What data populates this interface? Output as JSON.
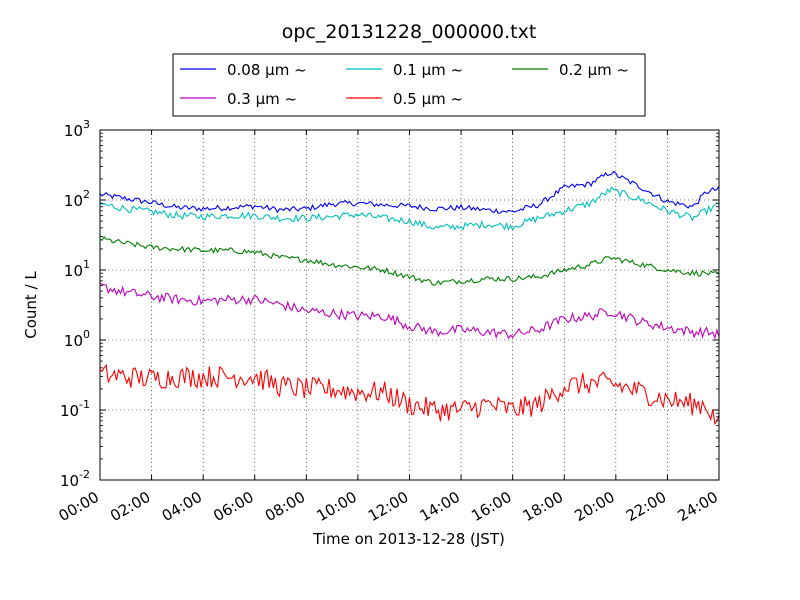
{
  "chart_data": {
    "type": "line",
    "title": "opc_20131228_000000.txt",
    "xlabel": "Time on 2013-12-28 (JST)",
    "ylabel": "Count / L",
    "yscale": "log",
    "ylim": [
      0.01,
      1000
    ],
    "xlim": [
      "00:00",
      "24:00"
    ],
    "xticks": [
      "00:00",
      "02:00",
      "04:00",
      "06:00",
      "08:00",
      "10:00",
      "12:00",
      "14:00",
      "16:00",
      "18:00",
      "20:00",
      "22:00",
      "24:00"
    ],
    "yticks": [
      {
        "value": 0.01,
        "base": "10",
        "exp": "-2"
      },
      {
        "value": 0.1,
        "base": "10",
        "exp": "-1"
      },
      {
        "value": 1,
        "base": "10",
        "exp": "0"
      },
      {
        "value": 10,
        "base": "10",
        "exp": "1"
      },
      {
        "value": 100,
        "base": "10",
        "exp": "2"
      },
      {
        "value": 1000,
        "base": "10",
        "exp": "3"
      }
    ],
    "grid": true,
    "legend_position": "top-center, above plot",
    "x_hours": [
      0,
      1,
      2,
      3,
      4,
      5,
      6,
      7,
      8,
      9,
      10,
      11,
      12,
      13,
      14,
      15,
      16,
      17,
      18,
      19,
      19.8,
      21,
      22,
      23,
      23.5,
      24
    ],
    "series": [
      {
        "name": "0.08 μm ~",
        "color": "#0000ff",
        "noise": 0.04,
        "values": [
          120,
          105,
          92,
          78,
          75,
          78,
          82,
          72,
          75,
          88,
          90,
          85,
          82,
          75,
          78,
          72,
          68,
          85,
          150,
          170,
          250,
          150,
          95,
          80,
          130,
          145
        ]
      },
      {
        "name": "0.1 μm ~",
        "color": "#00bfbf",
        "noise": 0.05,
        "values": [
          88,
          75,
          68,
          60,
          58,
          60,
          60,
          55,
          55,
          58,
          62,
          55,
          50,
          40,
          42,
          45,
          42,
          55,
          70,
          90,
          140,
          100,
          70,
          55,
          70,
          85
        ]
      },
      {
        "name": "0.2 μm ~",
        "color": "#008000",
        "noise": 0.04,
        "values": [
          28,
          24,
          21,
          20,
          19,
          19,
          18,
          15,
          14,
          12,
          11,
          10,
          8,
          6.5,
          7,
          7.5,
          7.5,
          8,
          10,
          12,
          15,
          12,
          10,
          9,
          9,
          8.5
        ]
      },
      {
        "name": "0.3 μm ~",
        "color": "#bf00bf",
        "noise": 0.07,
        "values": [
          5.8,
          4.8,
          4.2,
          3.8,
          3.6,
          3.8,
          3.8,
          3.2,
          2.6,
          2.4,
          2.2,
          2.2,
          1.6,
          1.3,
          1.4,
          1.3,
          1.2,
          1.4,
          2.0,
          2.2,
          2.6,
          1.8,
          1.5,
          1.3,
          1.3,
          1.2
        ]
      },
      {
        "name": "0.5 μm ~",
        "color": "#ff0000",
        "noise": 0.16,
        "values": [
          0.32,
          0.3,
          0.28,
          0.3,
          0.3,
          0.3,
          0.3,
          0.22,
          0.2,
          0.2,
          0.18,
          0.18,
          0.12,
          0.1,
          0.1,
          0.12,
          0.1,
          0.12,
          0.22,
          0.24,
          0.24,
          0.18,
          0.14,
          0.12,
          0.12,
          0.06
        ]
      }
    ]
  }
}
